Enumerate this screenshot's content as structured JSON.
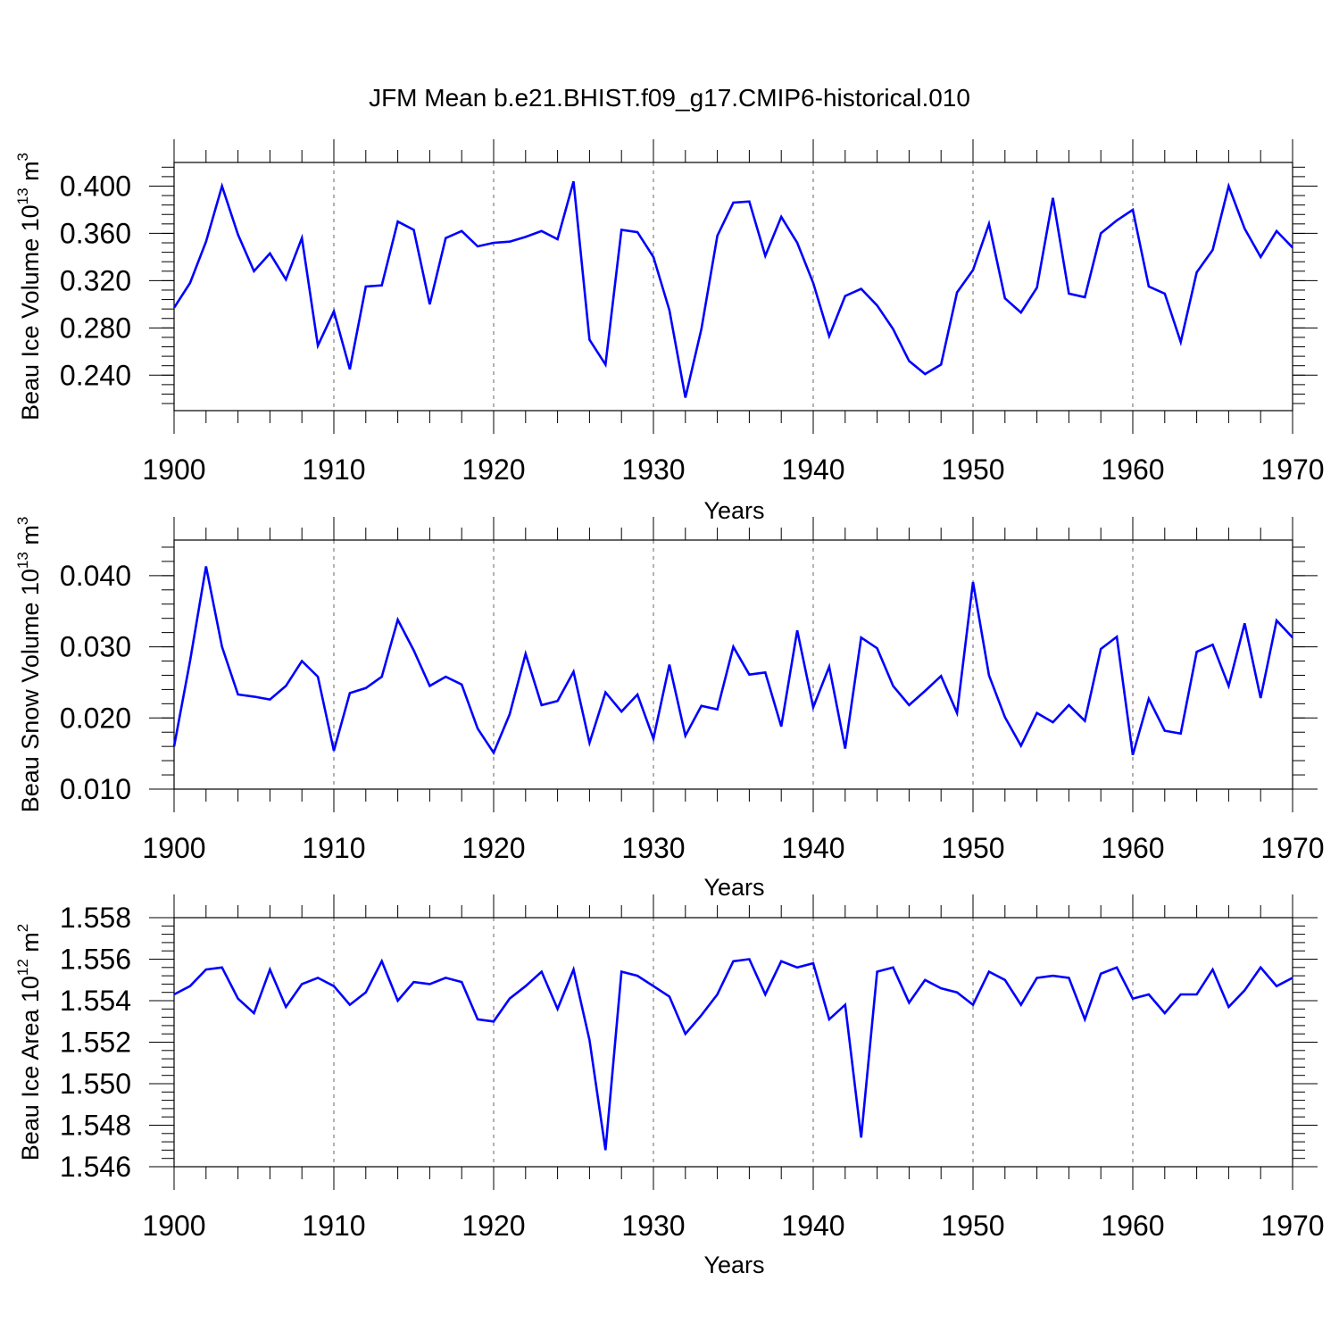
{
  "title": "JFM Mean b.e21.BHIST.f09_g17.CMIP6-historical.010",
  "colors": {
    "series": "#0000ff",
    "axis": "#000000",
    "grid": "#666666"
  },
  "chart_data": [
    {
      "type": "line",
      "name": "ice-volume",
      "ylabel": {
        "text": "Beau Ice Volume 10",
        "exp": "13",
        "unit": " m",
        "unit_exp": "3"
      },
      "xlabel": "Years",
      "xlim": [
        1900,
        1970
      ],
      "ylim": [
        0.21,
        0.42
      ],
      "xticks": [
        1900,
        1910,
        1920,
        1930,
        1940,
        1950,
        1960,
        1970
      ],
      "yticks": [
        0.24,
        0.28,
        0.32,
        0.36,
        0.4
      ],
      "ytick_labels": [
        "0.240",
        "0.280",
        "0.320",
        "0.360",
        "0.400"
      ],
      "x": [
        1900,
        1901,
        1902,
        1903,
        1904,
        1905,
        1906,
        1907,
        1908,
        1909,
        1910,
        1911,
        1912,
        1913,
        1914,
        1915,
        1916,
        1917,
        1918,
        1919,
        1920,
        1921,
        1922,
        1923,
        1924,
        1925,
        1926,
        1927,
        1928,
        1929,
        1930,
        1931,
        1932,
        1933,
        1934,
        1935,
        1936,
        1937,
        1938,
        1939,
        1940,
        1941,
        1942,
        1943,
        1944,
        1945,
        1946,
        1947,
        1948,
        1949,
        1950,
        1951,
        1952,
        1953,
        1954,
        1955,
        1956,
        1957,
        1958,
        1959,
        1960,
        1961,
        1962,
        1963,
        1964,
        1965,
        1966,
        1967,
        1968,
        1969,
        1970
      ],
      "values": [
        0.297,
        0.318,
        0.353,
        0.4,
        0.359,
        0.328,
        0.343,
        0.321,
        0.356,
        0.265,
        0.294,
        0.245,
        0.315,
        0.316,
        0.37,
        0.363,
        0.3,
        0.356,
        0.362,
        0.349,
        0.352,
        0.353,
        0.357,
        0.362,
        0.355,
        0.404,
        0.27,
        0.249,
        0.363,
        0.361,
        0.34,
        0.295,
        0.221,
        0.279,
        0.358,
        0.386,
        0.387,
        0.341,
        0.374,
        0.352,
        0.318,
        0.273,
        0.307,
        0.313,
        0.299,
        0.279,
        0.252,
        0.241,
        0.249,
        0.31,
        0.329,
        0.368,
        0.305,
        0.293,
        0.314,
        0.39,
        0.309,
        0.306,
        0.36,
        0.371,
        0.38,
        0.315,
        0.309,
        0.268,
        0.327,
        0.346,
        0.4,
        0.364,
        0.34,
        0.362,
        0.348
      ]
    },
    {
      "type": "line",
      "name": "snow-volume",
      "ylabel": {
        "text": "Beau Snow Volume 10",
        "exp": "13",
        "unit": " m",
        "unit_exp": "3"
      },
      "xlabel": "Years",
      "xlim": [
        1900,
        1970
      ],
      "ylim": [
        0.01,
        0.045
      ],
      "xticks": [
        1900,
        1910,
        1920,
        1930,
        1940,
        1950,
        1960,
        1970
      ],
      "yticks": [
        0.01,
        0.02,
        0.03,
        0.04
      ],
      "ytick_labels": [
        "0.010",
        "0.020",
        "0.030",
        "0.040"
      ],
      "x": [
        1900,
        1901,
        1902,
        1903,
        1904,
        1905,
        1906,
        1907,
        1908,
        1909,
        1910,
        1911,
        1912,
        1913,
        1914,
        1915,
        1916,
        1917,
        1918,
        1919,
        1920,
        1921,
        1922,
        1923,
        1924,
        1925,
        1926,
        1927,
        1928,
        1929,
        1930,
        1931,
        1932,
        1933,
        1934,
        1935,
        1936,
        1937,
        1938,
        1939,
        1940,
        1941,
        1942,
        1943,
        1944,
        1945,
        1946,
        1947,
        1948,
        1949,
        1950,
        1951,
        1952,
        1953,
        1954,
        1955,
        1956,
        1957,
        1958,
        1959,
        1960,
        1961,
        1962,
        1963,
        1964,
        1965,
        1966,
        1967,
        1968,
        1969,
        1970
      ],
      "values": [
        0.016,
        0.028,
        0.0413,
        0.03,
        0.0233,
        0.023,
        0.0226,
        0.0245,
        0.028,
        0.0258,
        0.0154,
        0.0235,
        0.0242,
        0.0258,
        0.0338,
        0.0295,
        0.0245,
        0.0258,
        0.0247,
        0.0185,
        0.0151,
        0.0205,
        0.029,
        0.0218,
        0.0224,
        0.0265,
        0.0165,
        0.0236,
        0.0209,
        0.0233,
        0.0171,
        0.0275,
        0.0175,
        0.0217,
        0.0212,
        0.03,
        0.0261,
        0.0264,
        0.0188,
        0.0323,
        0.0215,
        0.0272,
        0.0157,
        0.0313,
        0.0298,
        0.0245,
        0.0218,
        0.0238,
        0.0259,
        0.0207,
        0.0391,
        0.026,
        0.0201,
        0.0161,
        0.0207,
        0.0194,
        0.0218,
        0.0196,
        0.0297,
        0.0314,
        0.0148,
        0.0227,
        0.0182,
        0.0178,
        0.0293,
        0.0303,
        0.0245,
        0.0333,
        0.0228,
        0.0337,
        0.0313
      ]
    },
    {
      "type": "line",
      "name": "ice-area",
      "ylabel": {
        "text": "Beau Ice Area 10",
        "exp": "12",
        "unit": " m",
        "unit_exp": "2"
      },
      "xlabel": "Years",
      "xlim": [
        1900,
        1970
      ],
      "ylim": [
        1.546,
        1.558
      ],
      "xticks": [
        1900,
        1910,
        1920,
        1930,
        1940,
        1950,
        1960,
        1970
      ],
      "yticks": [
        1.546,
        1.548,
        1.55,
        1.552,
        1.554,
        1.556,
        1.558
      ],
      "ytick_labels": [
        "1.546",
        "1.548",
        "1.550",
        "1.552",
        "1.554",
        "1.556",
        "1.558"
      ],
      "x": [
        1900,
        1901,
        1902,
        1903,
        1904,
        1905,
        1906,
        1907,
        1908,
        1909,
        1910,
        1911,
        1912,
        1913,
        1914,
        1915,
        1916,
        1917,
        1918,
        1919,
        1920,
        1921,
        1922,
        1923,
        1924,
        1925,
        1926,
        1927,
        1928,
        1929,
        1930,
        1931,
        1932,
        1933,
        1934,
        1935,
        1936,
        1937,
        1938,
        1939,
        1940,
        1941,
        1942,
        1943,
        1944,
        1945,
        1946,
        1947,
        1948,
        1949,
        1950,
        1951,
        1952,
        1953,
        1954,
        1955,
        1956,
        1957,
        1958,
        1959,
        1960,
        1961,
        1962,
        1963,
        1964,
        1965,
        1966,
        1967,
        1968,
        1969,
        1970
      ],
      "values": [
        1.5543,
        1.5547,
        1.5555,
        1.5556,
        1.5541,
        1.5534,
        1.5555,
        1.5537,
        1.5548,
        1.5551,
        1.5547,
        1.5538,
        1.5544,
        1.5559,
        1.554,
        1.5549,
        1.5548,
        1.5551,
        1.5549,
        1.5531,
        1.553,
        1.5541,
        1.5547,
        1.5554,
        1.5536,
        1.5555,
        1.5521,
        1.5468,
        1.5554,
        1.5552,
        1.5547,
        1.5542,
        1.5524,
        1.5533,
        1.5543,
        1.5559,
        1.556,
        1.5543,
        1.5559,
        1.5556,
        1.5558,
        1.5531,
        1.5538,
        1.5474,
        1.5554,
        1.5556,
        1.5539,
        1.555,
        1.5546,
        1.5544,
        1.5538,
        1.5554,
        1.555,
        1.5538,
        1.5551,
        1.5552,
        1.5551,
        1.5531,
        1.5553,
        1.5556,
        1.5541,
        1.5543,
        1.5534,
        1.5543,
        1.5543,
        1.5555,
        1.5537,
        1.5545,
        1.5556,
        1.5547,
        1.5551
      ]
    }
  ]
}
